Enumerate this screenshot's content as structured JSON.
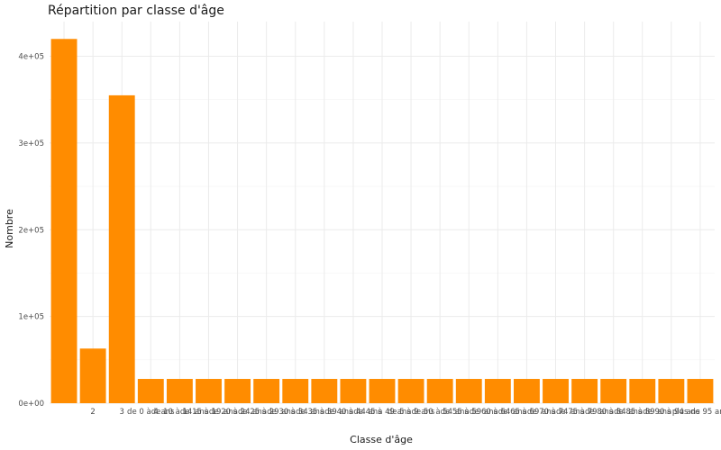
{
  "chart_data": {
    "type": "bar",
    "title": "Répartition par classe d'âge",
    "xlabel": "Classe d'âge",
    "ylabel": "Nombre",
    "bar_color": "#FF8C00",
    "background": "#FFFFFF",
    "grid": true,
    "legend": "none",
    "ylim": [
      0,
      440000
    ],
    "yticks": [
      0,
      100000,
      200000,
      300000,
      400000
    ],
    "ytick_labels": [
      "0e+00",
      "1e+05",
      "2e+05",
      "3e+05",
      "4e+05"
    ],
    "categories": [
      "",
      "2",
      "3",
      "de 0 à 4 ans",
      "de 10 à 14 ans",
      "de 15 à 19 ans",
      "de 20 à 24 ans",
      "de 25 à 29 ans",
      "de 30 à 34 ans",
      "de 35 à 39 ans",
      "de 40 à 44 ans",
      "de 45 à 49 ans",
      "de 5 à 9 ans",
      "de 50 à 54 ans",
      "de 55 à 59 ans",
      "de 60 à 64 ans",
      "de 65 à 69 ans",
      "de 70 à 74 ans",
      "de 75 à 79 ans",
      "de 80 à 84 ans",
      "de 85 à 89 ans",
      "de 90 à 94 ans",
      "plus de 95 ans"
    ],
    "values": [
      420000,
      63000,
      355000,
      28000,
      28000,
      28000,
      28000,
      28000,
      28000,
      28000,
      28000,
      28000,
      28000,
      28000,
      28000,
      28000,
      28000,
      28000,
      28000,
      28000,
      28000,
      28000,
      28000
    ]
  }
}
